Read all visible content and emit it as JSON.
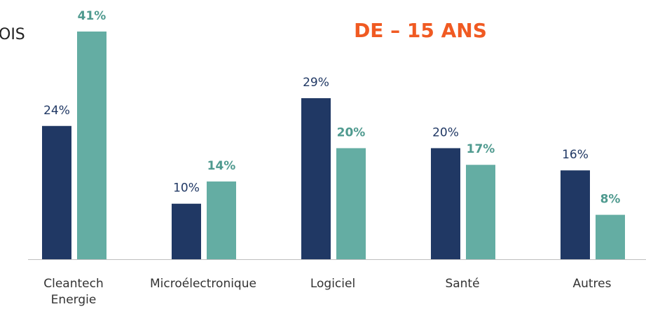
{
  "chart_data": {
    "type": "bar",
    "title": "OIS",
    "subtitle": "DE – 15 ANS",
    "categories": [
      "Cleantech\nEnergie",
      "Microélectronique",
      "Logiciel",
      "Santé",
      "Autres"
    ],
    "series": [
      {
        "color": "#203864",
        "values": [
          24,
          10,
          29,
          20,
          16
        ],
        "value_labels": [
          "24%",
          "10%",
          "29%",
          "20%",
          "16%"
        ]
      },
      {
        "color": "#64ada3",
        "values": [
          41,
          14,
          20,
          17,
          8
        ],
        "value_labels": [
          "41%",
          "14%",
          "20%",
          "17%",
          "8%"
        ]
      }
    ],
    "ylim": [
      0,
      41
    ]
  }
}
